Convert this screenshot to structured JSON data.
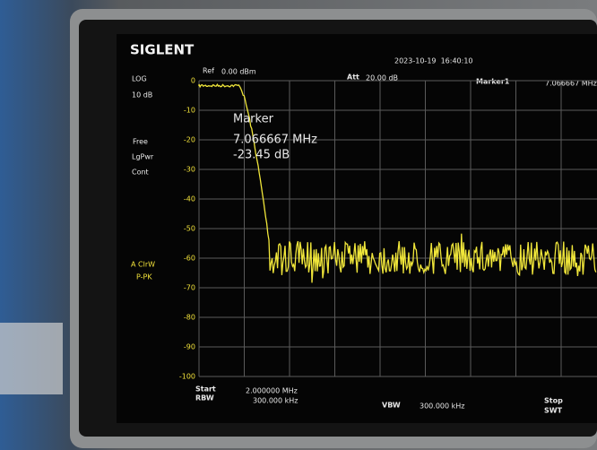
{
  "header": {
    "brand": "SIGLENT",
    "datetime": "2023-10-19  16:40:10",
    "ref_label": "Ref",
    "ref": "0.00 dBm",
    "att_label": "Att",
    "att": "20.00 dB",
    "marker_label": "Marker1",
    "marker_freq": "7.066667 MHz"
  },
  "left_panel": {
    "scale_type": "LOG",
    "scale": "10 dB",
    "modes": [
      "Free",
      "LgPwr",
      "Cont"
    ],
    "trace_modes": [
      "A ClrW",
      "P-PK"
    ]
  },
  "marker_box": {
    "title": "Marker",
    "freq": "7.066667 MHz",
    "level": "-23.45 dB"
  },
  "y_axis_labels": [
    "0",
    "-10",
    "-20",
    "-30",
    "-40",
    "-50",
    "-60",
    "-70",
    "-80",
    "-90",
    "-100"
  ],
  "footer": {
    "start_label": "Start",
    "rbw_label": "RBW",
    "start": "2.000000 MHz",
    "rbw": "300.000 kHz",
    "vbw_label": "VBW",
    "vbw": "300.000 kHz",
    "stop_label": "Stop",
    "swt_label": "SWT"
  }
}
